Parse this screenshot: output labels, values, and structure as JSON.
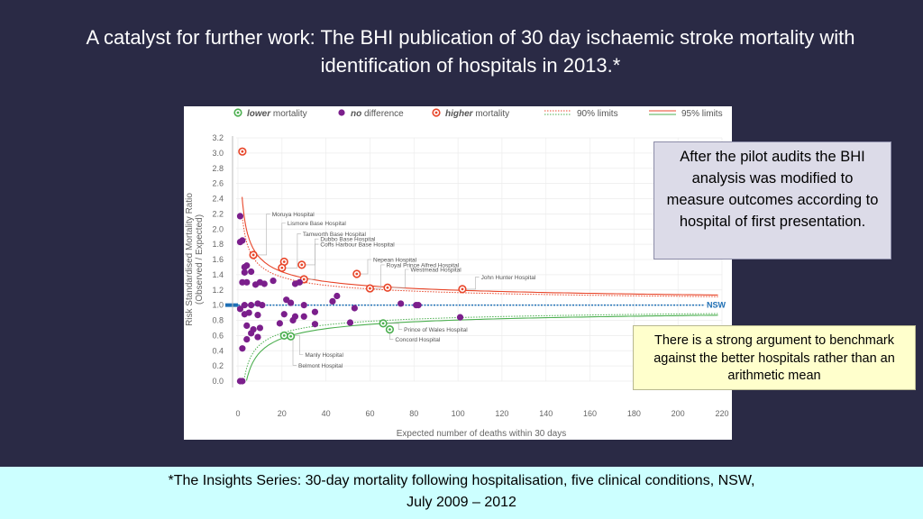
{
  "slide": {
    "title": "A catalyst for further work: The BHI publication of 30 day ischaemic stroke mortality with identification of hospitals in 2013.*",
    "callout_pilot": "After the pilot audits the BHI analysis was modified to measure outcomes according to hospital of first presentation.",
    "callout_benchmark": "There is a strong argument to benchmark against the better hospitals rather than an arithmetic mean",
    "footer_line1": "*The Insights Series: 30-day mortality following hospitalisation, five clinical conditions, NSW,",
    "footer_line2": "July 2009 – 2012"
  },
  "colors": {
    "background": "#2a2a45",
    "lower": "#4caf50",
    "no_difference": "#7b1f8c",
    "higher": "#e8462a",
    "nsw_line": "#1e6fb5",
    "footer_bg": "#ccffff",
    "callout_pilot_bg": "#dcdbe8",
    "callout_benchmark_bg": "#ffffcc"
  },
  "chart_data": {
    "type": "scatter",
    "legend": [
      {
        "emph": "lower",
        "rest": " mortality",
        "kind": "lower"
      },
      {
        "emph": "no",
        "rest": " difference",
        "kind": "none"
      },
      {
        "emph": "higher",
        "rest": " mortality",
        "kind": "higher"
      },
      {
        "emph": "",
        "rest": "90% limits",
        "kind": "limit90"
      },
      {
        "emph": "",
        "rest": "95% limits",
        "kind": "limit95"
      }
    ],
    "legend_position": "top",
    "xlabel": "Expected number of deaths within 30 days",
    "ylabel": "Risk Standardised Mortality Ratio",
    "ylabel2": "(Observed / Expected)",
    "xlim": [
      0,
      220
    ],
    "ylim": [
      0,
      3.2
    ],
    "xticks": [
      0,
      20,
      40,
      60,
      80,
      100,
      120,
      140,
      160,
      180,
      200,
      220
    ],
    "yticks": [
      "0.0",
      "0.2",
      "0.4",
      "0.6",
      "0.8",
      "1.0",
      "1.2",
      "1.4",
      "1.6",
      "1.8",
      "2.0",
      "2.2",
      "2.4",
      "2.6",
      "2.8",
      "3.0",
      "3.2"
    ],
    "reference_value": 1.0,
    "reference_label": "NSW",
    "series": [
      {
        "name": "higher mortality",
        "kind": "higher",
        "points": [
          {
            "x": 2,
            "y": 3.02
          },
          {
            "x": 7,
            "y": 1.66
          },
          {
            "x": 21,
            "y": 1.57
          },
          {
            "x": 20,
            "y": 1.49
          },
          {
            "x": 29,
            "y": 1.53
          },
          {
            "x": 54,
            "y": 1.41
          },
          {
            "x": 30,
            "y": 1.34
          },
          {
            "x": 60,
            "y": 1.22
          },
          {
            "x": 68,
            "y": 1.23
          },
          {
            "x": 102,
            "y": 1.21
          }
        ]
      },
      {
        "name": "lower mortality",
        "kind": "lower",
        "points": [
          {
            "x": 21,
            "y": 0.6
          },
          {
            "x": 24,
            "y": 0.59
          },
          {
            "x": 66,
            "y": 0.76
          },
          {
            "x": 69,
            "y": 0.68
          }
        ]
      },
      {
        "name": "no difference",
        "kind": "none",
        "points": [
          {
            "x": 1,
            "y": 2.17
          },
          {
            "x": 1,
            "y": 1.83
          },
          {
            "x": 2,
            "y": 1.85
          },
          {
            "x": 3,
            "y": 1.5
          },
          {
            "x": 3,
            "y": 1.43
          },
          {
            "x": 4,
            "y": 1.52
          },
          {
            "x": 4,
            "y": 1.3
          },
          {
            "x": 2,
            "y": 1.3
          },
          {
            "x": 6,
            "y": 1.44
          },
          {
            "x": 8,
            "y": 1.27
          },
          {
            "x": 10,
            "y": 1.3
          },
          {
            "x": 12,
            "y": 1.28
          },
          {
            "x": 16,
            "y": 1.32
          },
          {
            "x": 26,
            "y": 1.28
          },
          {
            "x": 28,
            "y": 1.3
          },
          {
            "x": 3,
            "y": 1.0
          },
          {
            "x": 6,
            "y": 1.0
          },
          {
            "x": 9,
            "y": 1.02
          },
          {
            "x": 11,
            "y": 1.0
          },
          {
            "x": 22,
            "y": 1.07
          },
          {
            "x": 24,
            "y": 1.03
          },
          {
            "x": 30,
            "y": 1.0
          },
          {
            "x": 43,
            "y": 1.05
          },
          {
            "x": 45,
            "y": 1.12
          },
          {
            "x": 74,
            "y": 1.02
          },
          {
            "x": 81,
            "y": 1.0
          },
          {
            "x": 82,
            "y": 1.0
          },
          {
            "x": 1,
            "y": 0.95
          },
          {
            "x": 3,
            "y": 0.88
          },
          {
            "x": 5,
            "y": 0.9
          },
          {
            "x": 9,
            "y": 0.87
          },
          {
            "x": 21,
            "y": 0.88
          },
          {
            "x": 26,
            "y": 0.85
          },
          {
            "x": 30,
            "y": 0.85
          },
          {
            "x": 35,
            "y": 0.91
          },
          {
            "x": 53,
            "y": 0.96
          },
          {
            "x": 4,
            "y": 0.73
          },
          {
            "x": 7,
            "y": 0.68
          },
          {
            "x": 6,
            "y": 0.63
          },
          {
            "x": 10,
            "y": 0.7
          },
          {
            "x": 19,
            "y": 0.76
          },
          {
            "x": 25,
            "y": 0.8
          },
          {
            "x": 35,
            "y": 0.75
          },
          {
            "x": 51,
            "y": 0.77
          },
          {
            "x": 9,
            "y": 0.58
          },
          {
            "x": 4,
            "y": 0.55
          },
          {
            "x": 2,
            "y": 0.43
          },
          {
            "x": 1,
            "y": 0.0
          },
          {
            "x": 2,
            "y": 0.0
          },
          {
            "x": 101,
            "y": 0.84
          }
        ]
      }
    ],
    "annotations": [
      {
        "label": "Moruya Hospital",
        "x": 7,
        "y": 1.66,
        "lx": 13,
        "ly": 2.2
      },
      {
        "label": "Lismore Base Hospital",
        "x": 21,
        "y": 1.57,
        "lx": 20,
        "ly": 2.08
      },
      {
        "label": "Tamworth Base Hospital",
        "x": 20,
        "y": 1.49,
        "lx": 27,
        "ly": 1.94
      },
      {
        "label": "Dubbo Base Hospital",
        "x": 29,
        "y": 1.53,
        "lx": 35,
        "ly": 1.87
      },
      {
        "label": "Coffs Harbour Base Hospital",
        "x": 30,
        "y": 1.34,
        "lx": 35,
        "ly": 1.8
      },
      {
        "label": "Nepean Hospital",
        "x": 54,
        "y": 1.41,
        "lx": 59,
        "ly": 1.6
      },
      {
        "label": "Royal Prince Alfred Hospital",
        "x": 60,
        "y": 1.22,
        "lx": 65,
        "ly": 1.53
      },
      {
        "label": "Westmead Hospital",
        "x": 68,
        "y": 1.23,
        "lx": 76,
        "ly": 1.47
      },
      {
        "label": "John Hunter Hospital",
        "x": 102,
        "y": 1.21,
        "lx": 108,
        "ly": 1.37
      },
      {
        "label": "Prince of Wales Hospital",
        "x": 66,
        "y": 0.76,
        "lx": 73,
        "ly": 0.68
      },
      {
        "label": "Concord Hospital",
        "x": 69,
        "y": 0.68,
        "lx": 69,
        "ly": 0.55
      },
      {
        "label": "Manly Hospital",
        "x": 21,
        "y": 0.6,
        "lx": 28,
        "ly": 0.35
      },
      {
        "label": "Belmont Hospital",
        "x": 24,
        "y": 0.59,
        "lx": 25,
        "ly": 0.21
      }
    ]
  }
}
